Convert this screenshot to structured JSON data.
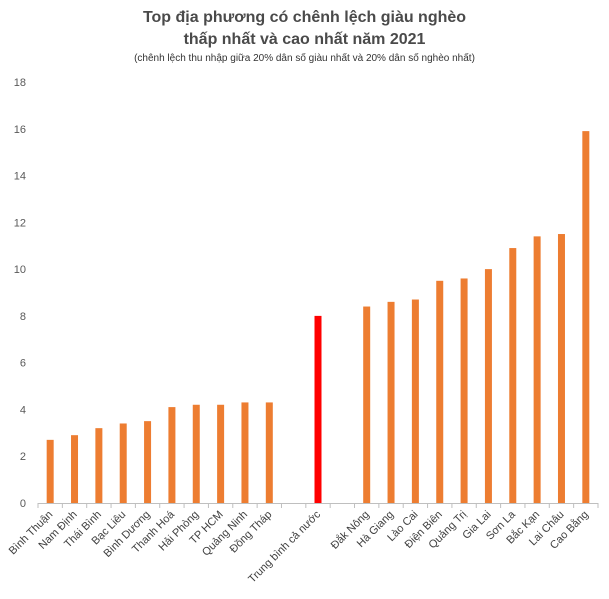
{
  "chart_data": {
    "type": "bar",
    "title_line1": "Top địa phương có chênh lệch giàu nghèo",
    "title_line2": "thấp nhất và cao nhất năm 2021",
    "subtitle": "(chênh lệch thu nhập giữa 20% dân số giàu nhất và 20% dân số nghèo nhất)",
    "ylim": [
      0,
      18
    ],
    "yticks": [
      0,
      2,
      4,
      6,
      8,
      10,
      12,
      14,
      16,
      18
    ],
    "categories": [
      "Bình Thuận",
      "Nam Định",
      "Thái Bình",
      "Bạc Liêu",
      "Bình Dương",
      "Thanh Hoá",
      "Hải Phòng",
      "TP HCM",
      "Quảng Ninh",
      "Đồng Tháp",
      "",
      "Trung bình cả nước",
      "",
      "Đắk Nông",
      "Hà Giang",
      "Lào Cai",
      "Điện Biên",
      "Quảng Trị",
      "Gia Lai",
      "Sơn La",
      "Bắc Kạn",
      "Lai Châu",
      "Cao Bằng"
    ],
    "values": [
      2.7,
      2.9,
      3.2,
      3.4,
      3.5,
      4.1,
      4.2,
      4.2,
      4.3,
      4.3,
      null,
      8.0,
      null,
      8.4,
      8.6,
      8.7,
      9.5,
      9.6,
      10.0,
      10.9,
      11.4,
      11.5,
      15.9
    ],
    "colors": {
      "default": "#ED7D31",
      "highlight": "#FF0000",
      "axis": "#BFBFBF"
    },
    "highlight_category": "Trung bình cả nước"
  }
}
